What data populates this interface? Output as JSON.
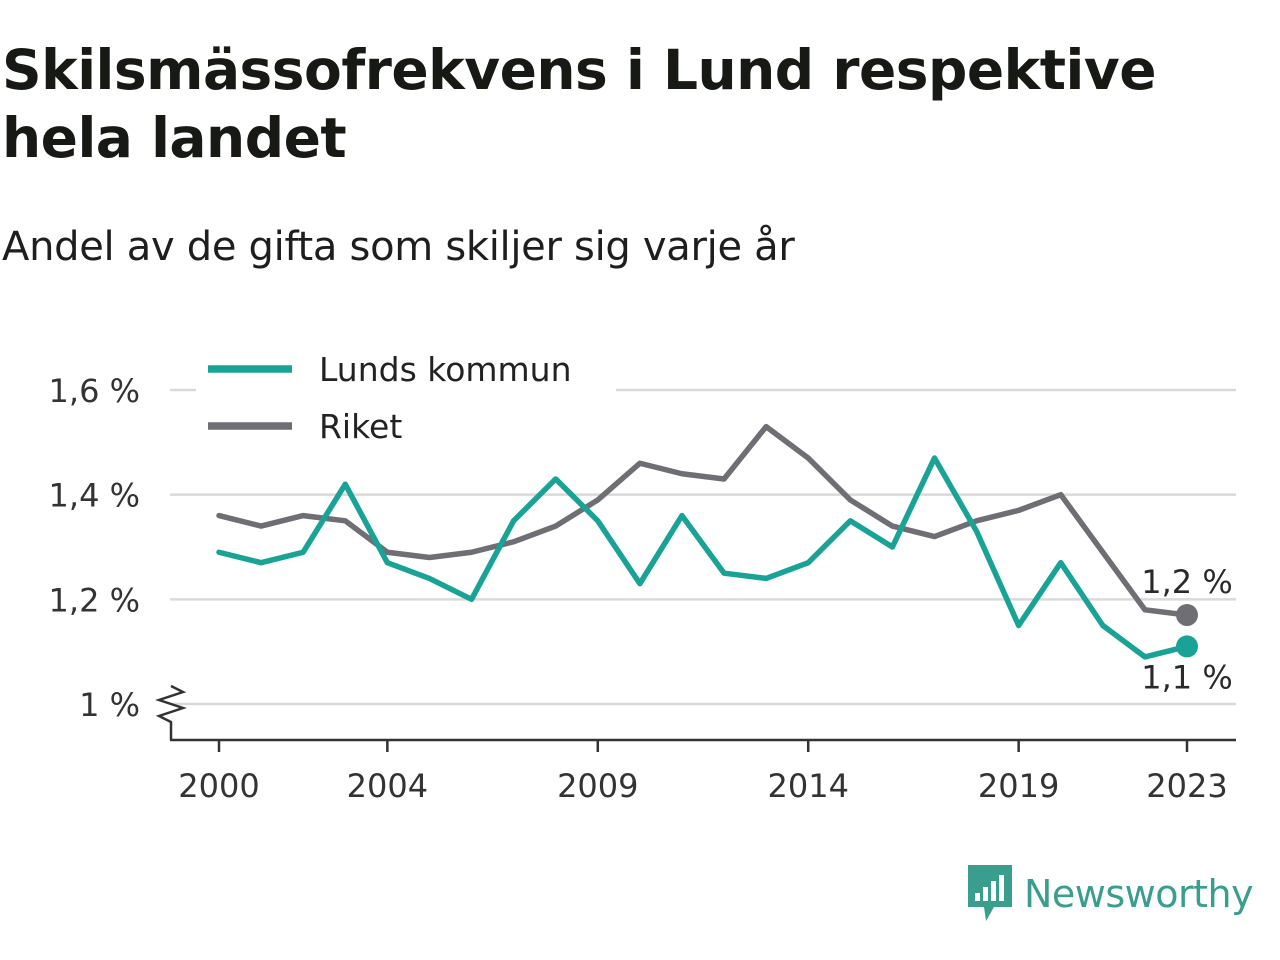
{
  "title": "Skilsmässofrekvens i Lund respektive hela landet",
  "subtitle": "Andel av de gifta som skiljer sig varje år",
  "brand": "Newsworthy",
  "colors": {
    "lund": "#18a396",
    "riket": "#6e6e74",
    "grid": "#d9d9d9",
    "brand": "#3a9e8e"
  },
  "chart_data": {
    "type": "line",
    "x": [
      2000,
      2001,
      2002,
      2003,
      2004,
      2005,
      2006,
      2007,
      2008,
      2009,
      2010,
      2011,
      2012,
      2013,
      2014,
      2015,
      2016,
      2017,
      2018,
      2019,
      2020,
      2021,
      2022,
      2023
    ],
    "series": [
      {
        "name": "Lunds kommun",
        "color": "#18a396",
        "values": [
          1.29,
          1.27,
          1.29,
          1.42,
          1.27,
          1.24,
          1.2,
          1.35,
          1.43,
          1.35,
          1.23,
          1.36,
          1.25,
          1.24,
          1.27,
          1.35,
          1.3,
          1.47,
          1.33,
          1.15,
          1.27,
          1.15,
          1.09,
          1.11
        ],
        "end_label": "1,1 %"
      },
      {
        "name": "Riket",
        "color": "#6e6e74",
        "values": [
          1.36,
          1.34,
          1.36,
          1.35,
          1.29,
          1.28,
          1.29,
          1.31,
          1.34,
          1.39,
          1.46,
          1.44,
          1.43,
          1.53,
          1.47,
          1.39,
          1.34,
          1.32,
          1.35,
          1.37,
          1.4,
          1.29,
          1.18,
          1.17
        ],
        "end_label": "1,2 %"
      }
    ],
    "ylim": [
      1.0,
      1.6
    ],
    "yticks": [
      1.0,
      1.2,
      1.4,
      1.6
    ],
    "ytick_labels": [
      "1 %",
      "1,2 %",
      "1,4 %",
      "1,6 %"
    ],
    "xticks": [
      2000,
      2004,
      2009,
      2014,
      2019,
      2023
    ],
    "xtick_labels": [
      "2000",
      "2004",
      "2009",
      "2014",
      "2019",
      "2023"
    ],
    "grid": true,
    "axis_break": true,
    "legend_position": "top-left",
    "xlabel": "",
    "ylabel": ""
  }
}
